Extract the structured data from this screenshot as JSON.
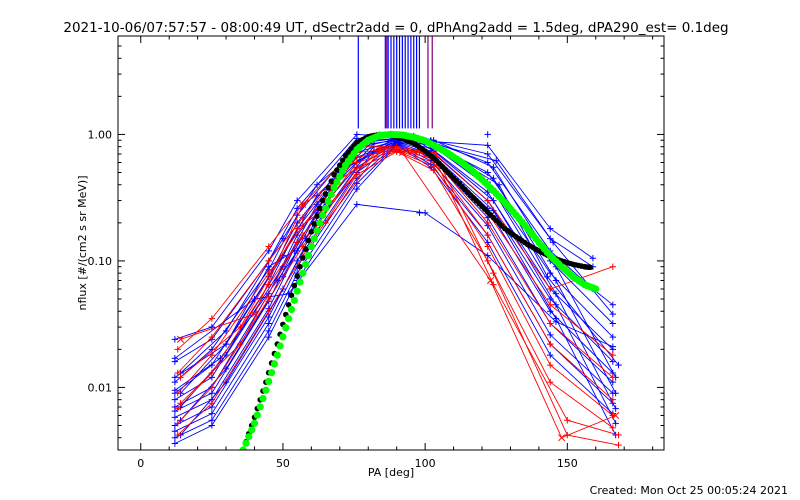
{
  "chart_data": {
    "type": "line",
    "title": "2021-10-06/07:57:57 - 08:00:49 UT, dSectr2add = 0, dPhAng2add = 1.5deg, dPA290_est=  0.1deg",
    "xlabel": "PA [deg]",
    "ylabel": "nflux [#/(cm2 s sr MeV)]",
    "footer": "Created: Mon Oct 25 00:05:24 2021",
    "xlim": [
      -8,
      184
    ],
    "ylim": [
      0.0032,
      6.0
    ],
    "yscale": "log",
    "x_ticks": [
      0,
      50,
      100,
      150
    ],
    "x_tick_labels": [
      "0",
      "50",
      "100",
      "150"
    ],
    "y_ticks": [
      0.01,
      0.1,
      1.0
    ],
    "y_tick_labels": [
      "0.01",
      "0.10",
      "1.00"
    ],
    "grid": false,
    "legend": "none",
    "colors": {
      "blue_traces": "#0000ff",
      "red_traces": "#ff0000",
      "black_fit": "#000000",
      "green_fit": "#00ff00",
      "purple_markers": "#800080"
    },
    "vertical_markers": [
      {
        "x": 76.5,
        "color": "#0000ff"
      },
      {
        "x": 86.0,
        "color": "#0000ff"
      },
      {
        "x": 87.0,
        "color": "#0000ff"
      },
      {
        "x": 88.0,
        "color": "#0000ff"
      },
      {
        "x": 89.0,
        "color": "#0000ff"
      },
      {
        "x": 90.0,
        "color": "#0000ff"
      },
      {
        "x": 91.0,
        "color": "#0000ff"
      },
      {
        "x": 92.0,
        "color": "#0000ff"
      },
      {
        "x": 93.0,
        "color": "#0000ff"
      },
      {
        "x": 94.0,
        "color": "#0000ff"
      },
      {
        "x": 95.0,
        "color": "#0000ff"
      },
      {
        "x": 96.0,
        "color": "#0000ff"
      },
      {
        "x": 97.0,
        "color": "#0000ff"
      },
      {
        "x": 98.0,
        "color": "#0000ff"
      },
      {
        "x": 86.5,
        "color": "#800080"
      },
      {
        "x": 101.0,
        "color": "#800080"
      },
      {
        "x": 102.5,
        "color": "#800080"
      }
    ],
    "series": [
      {
        "color": "#0000ff",
        "marker": "+",
        "x": [
          12,
          25,
          45,
          55,
          76,
          90,
          102,
          122,
          144,
          159
        ],
        "y": [
          0.024,
          0.03,
          0.12,
          0.3,
          1.0,
          0.96,
          0.88,
          0.82,
          0.18,
          0.105
        ]
      },
      {
        "color": "#0000ff",
        "marker": "+",
        "x": [
          12,
          25,
          45,
          55,
          76,
          90,
          102,
          122,
          144,
          159
        ],
        "y": [
          0.016,
          0.024,
          0.1,
          0.26,
          0.93,
          0.95,
          0.9,
          0.7,
          0.15,
          0.09
        ]
      },
      {
        "color": "#0000ff",
        "marker": "+",
        "x": [
          12,
          25,
          45,
          55,
          76,
          90,
          102,
          122,
          144,
          159,
          166
        ],
        "y": [
          0.011,
          0.02,
          0.085,
          0.23,
          0.85,
          0.93,
          0.88,
          0.6,
          0.12,
          0.06,
          0.045
        ]
      },
      {
        "color": "#0000ff",
        "marker": "+",
        "x": [
          12,
          25,
          45,
          55,
          76,
          90,
          102,
          122,
          144,
          166
        ],
        "y": [
          0.009,
          0.015,
          0.075,
          0.2,
          0.78,
          0.92,
          0.85,
          0.5,
          0.1,
          0.032
        ]
      },
      {
        "color": "#0000ff",
        "marker": "+",
        "x": [
          12,
          25,
          45,
          55,
          76,
          90,
          102,
          122,
          144,
          166
        ],
        "y": [
          0.008,
          0.012,
          0.065,
          0.18,
          0.72,
          0.9,
          0.82,
          0.42,
          0.08,
          0.025
        ]
      },
      {
        "color": "#0000ff",
        "marker": "+",
        "x": [
          12,
          25,
          45,
          55,
          76,
          90,
          102,
          122,
          144,
          166
        ],
        "y": [
          0.007,
          0.01,
          0.055,
          0.16,
          0.66,
          0.88,
          0.78,
          0.35,
          0.06,
          0.02
        ]
      },
      {
        "color": "#0000ff",
        "marker": "+",
        "x": [
          12,
          25,
          45,
          55,
          76,
          90,
          102,
          122,
          144,
          166
        ],
        "y": [
          0.0065,
          0.009,
          0.048,
          0.14,
          0.6,
          0.87,
          0.74,
          0.3,
          0.05,
          0.016
        ]
      },
      {
        "color": "#0000ff",
        "marker": "+",
        "x": [
          12,
          25,
          45,
          55,
          76,
          90,
          102,
          122,
          144,
          166
        ],
        "y": [
          0.0058,
          0.008,
          0.042,
          0.12,
          0.55,
          0.86,
          0.7,
          0.26,
          0.04,
          0.013
        ]
      },
      {
        "color": "#0000ff",
        "marker": "+",
        "x": [
          12,
          25,
          45,
          55,
          76,
          90,
          102,
          122,
          144,
          166
        ],
        "y": [
          0.005,
          0.007,
          0.036,
          0.1,
          0.5,
          0.85,
          0.66,
          0.22,
          0.032,
          0.011
        ]
      },
      {
        "color": "#0000ff",
        "marker": "+",
        "x": [
          12,
          25,
          45,
          55,
          76,
          90,
          102,
          122,
          144,
          166
        ],
        "y": [
          0.0045,
          0.0062,
          0.032,
          0.09,
          0.45,
          0.84,
          0.62,
          0.19,
          0.026,
          0.009
        ]
      },
      {
        "color": "#0000ff",
        "marker": "+",
        "x": [
          12,
          25,
          45,
          55,
          76,
          90,
          102,
          122,
          144,
          166
        ],
        "y": [
          0.004,
          0.0055,
          0.028,
          0.08,
          0.41,
          0.83,
          0.58,
          0.16,
          0.022,
          0.0075
        ]
      },
      {
        "color": "#0000ff",
        "marker": "+",
        "x": [
          12,
          25,
          45,
          55,
          76,
          90,
          102,
          122,
          144,
          166
        ],
        "y": [
          0.0036,
          0.005,
          0.025,
          0.07,
          0.37,
          0.82,
          0.55,
          0.14,
          0.018,
          0.0062
        ]
      },
      {
        "color": "#0000ff",
        "marker": "+",
        "x": [
          14,
          30,
          50,
          62,
          82,
          96,
          103,
          124,
          146,
          167
        ],
        "y": [
          0.013,
          0.028,
          0.15,
          0.4,
          0.95,
          0.97,
          0.9,
          0.55,
          0.09,
          0.012
        ]
      },
      {
        "color": "#0000ff",
        "marker": "+",
        "x": [
          14,
          30,
          50,
          62,
          82,
          96,
          103,
          124,
          146,
          167
        ],
        "y": [
          0.009,
          0.022,
          0.11,
          0.33,
          0.9,
          0.95,
          0.86,
          0.45,
          0.07,
          0.009
        ]
      },
      {
        "color": "#0000ff",
        "marker": "+",
        "x": [
          14,
          30,
          50,
          62,
          82,
          96,
          103,
          124,
          146,
          167
        ],
        "y": [
          0.007,
          0.018,
          0.09,
          0.28,
          0.85,
          0.94,
          0.8,
          0.36,
          0.055,
          0.0068
        ]
      },
      {
        "color": "#0000ff",
        "marker": "+",
        "x": [
          14,
          30,
          50,
          62,
          82,
          96,
          103,
          124,
          146,
          167
        ],
        "y": [
          0.0055,
          0.014,
          0.075,
          0.24,
          0.8,
          0.92,
          0.74,
          0.3,
          0.045,
          0.0052
        ]
      },
      {
        "color": "#0000ff",
        "marker": "+",
        "x": [
          14,
          30,
          50,
          62,
          82,
          96,
          103,
          124,
          146,
          167
        ],
        "y": [
          0.0042,
          0.011,
          0.06,
          0.2,
          0.74,
          0.9,
          0.68,
          0.25,
          0.035,
          0.0042
        ]
      },
      {
        "color": "#0000ff",
        "marker": "+",
        "x": [
          12,
          40,
          52,
          76,
          100,
          122,
          146,
          166
        ],
        "y": [
          0.017,
          0.05,
          0.055,
          0.28,
          0.24,
          0.11,
          0.033,
          0.021
        ]
      },
      {
        "color": "#0000ff",
        "marker": "+",
        "x": [
          12,
          30,
          45,
          54,
          70,
          88,
          100,
          125,
          145,
          166
        ],
        "y": [
          0.012,
          0.022,
          0.09,
          0.12,
          0.5,
          0.9,
          0.88,
          0.62,
          0.14,
          0.038
        ]
      },
      {
        "color": "#0000ff",
        "marker": "+",
        "x": [
          12,
          28,
          48,
          58,
          72,
          92,
          104,
          126,
          143,
          168
        ],
        "y": [
          0.0095,
          0.017,
          0.07,
          0.15,
          0.55,
          0.94,
          0.8,
          0.4,
          0.075,
          0.015
        ]
      },
      {
        "color": "#ff0000",
        "marker": "+",
        "x": [
          13,
          25,
          45,
          57,
          76,
          90,
          103,
          122,
          144,
          166
        ],
        "y": [
          0.02,
          0.035,
          0.13,
          0.28,
          0.8,
          0.8,
          0.72,
          0.3,
          0.06,
          0.09
        ]
      },
      {
        "color": "#ff0000",
        "marker": "+",
        "x": [
          13,
          25,
          45,
          57,
          76,
          90,
          103,
          122,
          144,
          166
        ],
        "y": [
          0.013,
          0.025,
          0.1,
          0.22,
          0.72,
          0.78,
          0.68,
          0.24,
          0.045,
          0.018
        ]
      },
      {
        "color": "#ff0000",
        "marker": "+",
        "x": [
          13,
          25,
          45,
          57,
          76,
          90,
          103,
          122,
          144,
          166
        ],
        "y": [
          0.009,
          0.018,
          0.08,
          0.19,
          0.66,
          0.76,
          0.64,
          0.2,
          0.032,
          0.012
        ]
      },
      {
        "color": "#ff0000",
        "marker": "+",
        "x": [
          13,
          25,
          45,
          57,
          76,
          90,
          103,
          122,
          144,
          166
        ],
        "y": [
          0.0068,
          0.013,
          0.065,
          0.16,
          0.6,
          0.75,
          0.6,
          0.16,
          0.022,
          0.008
        ]
      },
      {
        "color": "#ff0000",
        "marker": "+",
        "x": [
          13,
          25,
          45,
          57,
          76,
          90,
          103,
          122,
          144,
          166
        ],
        "y": [
          0.0052,
          0.01,
          0.05,
          0.13,
          0.54,
          0.74,
          0.56,
          0.13,
          0.015,
          0.006
        ]
      },
      {
        "color": "#ff0000",
        "marker": "+",
        "x": [
          13,
          25,
          45,
          57,
          76,
          90,
          103,
          122,
          144,
          166
        ],
        "y": [
          0.0042,
          0.0075,
          0.04,
          0.11,
          0.48,
          0.73,
          0.52,
          0.1,
          0.011,
          0.0048
        ]
      },
      {
        "color": "#ff0000",
        "marker": "+",
        "x": [
          14,
          35,
          55,
          65,
          84,
          98,
          104,
          124,
          150,
          168
        ],
        "y": [
          0.012,
          0.03,
          0.18,
          0.26,
          0.78,
          0.74,
          0.66,
          0.08,
          0.0042,
          0.0035
        ]
      },
      {
        "color": "#ff0000",
        "marker": "+",
        "x": [
          14,
          35,
          55,
          65,
          84,
          98,
          104,
          124,
          150,
          168
        ],
        "y": [
          0.0075,
          0.022,
          0.14,
          0.2,
          0.74,
          0.72,
          0.6,
          0.065,
          0.0055,
          0.0042
        ]
      },
      {
        "color": "#ff0000",
        "marker": "x",
        "x": [
          14,
          40,
          57,
          85,
          92,
          123,
          148,
          167
        ],
        "y": [
          0.024,
          0.038,
          0.28,
          0.74,
          0.72,
          0.07,
          0.004,
          0.006
        ]
      }
    ],
    "fits": [
      {
        "color": "#000000",
        "marker": "dot",
        "x": [
          36,
          40,
          44,
          48,
          52,
          56,
          60,
          64,
          68,
          72,
          76,
          80,
          84,
          88,
          92,
          96,
          100,
          104,
          108,
          112,
          116,
          120,
          124,
          128,
          132,
          136,
          140,
          144,
          148,
          152,
          156,
          158
        ],
        "y": [
          0.0032,
          0.0058,
          0.011,
          0.022,
          0.045,
          0.09,
          0.17,
          0.3,
          0.48,
          0.68,
          0.86,
          0.96,
          1.0,
          0.98,
          0.93,
          0.85,
          0.74,
          0.62,
          0.5,
          0.41,
          0.33,
          0.27,
          0.22,
          0.18,
          0.155,
          0.135,
          0.12,
          0.108,
          0.1,
          0.094,
          0.09,
          0.089
        ]
      },
      {
        "color": "#00ff00",
        "marker": "dot",
        "x": [
          36,
          40,
          44,
          48,
          52,
          56,
          60,
          64,
          68,
          72,
          76,
          80,
          84,
          88,
          92,
          96,
          100,
          104,
          108,
          112,
          116,
          120,
          124,
          128,
          132,
          136,
          140,
          144,
          148,
          152,
          156,
          160
        ],
        "y": [
          0.0032,
          0.0052,
          0.0095,
          0.018,
          0.035,
          0.068,
          0.13,
          0.23,
          0.38,
          0.57,
          0.76,
          0.9,
          0.98,
          1.0,
          0.99,
          0.95,
          0.89,
          0.8,
          0.71,
          0.62,
          0.53,
          0.44,
          0.36,
          0.29,
          0.23,
          0.18,
          0.14,
          0.11,
          0.09,
          0.075,
          0.065,
          0.06
        ]
      }
    ],
    "extra_points": [
      {
        "x": 98,
        "y": 0.24,
        "color": "#0000ff",
        "marker": "+"
      },
      {
        "x": 122,
        "y": 1.0,
        "color": "#0000ff",
        "marker": "+"
      }
    ]
  }
}
